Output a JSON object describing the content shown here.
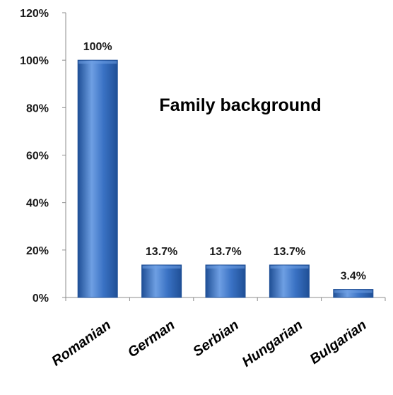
{
  "chart_data": {
    "type": "bar",
    "title": "Family background",
    "xlabel": "",
    "ylabel": "",
    "categories": [
      "Romanian",
      "German",
      "Serbian",
      "Hungarian",
      "Bulgarian"
    ],
    "values": [
      100,
      13.7,
      13.7,
      13.7,
      3.4
    ],
    "data_labels": [
      "100%",
      "13.7%",
      "13.7%",
      "13.7%",
      "3.4%"
    ],
    "ylim": [
      0,
      120
    ],
    "yticks": [
      0,
      20,
      40,
      60,
      80,
      100,
      120
    ],
    "ytick_labels": [
      "0%",
      "20%",
      "40%",
      "60%",
      "80%",
      "100%",
      "120%"
    ],
    "grid": false,
    "legend": "none",
    "bar_color": "#3A72C4",
    "bar_color_dark": "#1F4F96",
    "bar_color_light": "#6E9FE3"
  }
}
